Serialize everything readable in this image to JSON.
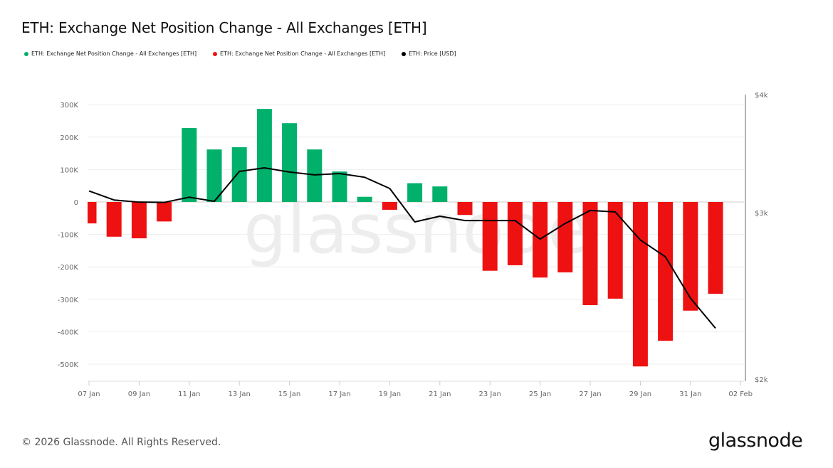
{
  "title": "ETH: Exchange Net Position Change - All Exchanges [ETH]",
  "legend": [
    {
      "label": "ETH: Exchange Net Position Change - All Exchanges [ETH]",
      "color": "#00b06b"
    },
    {
      "label": "ETH: Exchange Net Position Change - All Exchanges [ETH]",
      "color": "#ee1111"
    },
    {
      "label": "ETH: Price [USD]",
      "color": "#000000"
    }
  ],
  "footer": "© 2026 Glassnode. All Rights Reserved.",
  "logo": "glassnode",
  "watermark": "glassnode",
  "chart_data": {
    "type": "bar",
    "title": "ETH: Exchange Net Position Change - All Exchanges [ETH]",
    "categories": [
      "07 Jan",
      "08 Jan",
      "09 Jan",
      "10 Jan",
      "11 Jan",
      "12 Jan",
      "13 Jan",
      "14 Jan",
      "15 Jan",
      "16 Jan",
      "17 Jan",
      "18 Jan",
      "19 Jan",
      "20 Jan",
      "21 Jan",
      "22 Jan",
      "23 Jan",
      "24 Jan",
      "25 Jan",
      "26 Jan",
      "27 Jan",
      "28 Jan",
      "29 Jan",
      "30 Jan",
      "31 Jan",
      "01 Feb"
    ],
    "x_tick_labels": [
      "07 Jan",
      "09 Jan",
      "11 Jan",
      "13 Jan",
      "15 Jan",
      "17 Jan",
      "19 Jan",
      "21 Jan",
      "23 Jan",
      "25 Jan",
      "27 Jan",
      "29 Jan",
      "31 Jan",
      "02 Feb"
    ],
    "series": [
      {
        "name": "ETH: Exchange Net Position Change - All Exchanges [ETH]",
        "type": "bar",
        "axis": "left",
        "values": [
          -66000,
          -107000,
          -112000,
          -60000,
          228000,
          162000,
          169000,
          287000,
          243000,
          162000,
          94000,
          16000,
          -24000,
          58000,
          48000,
          -40000,
          -212000,
          -195000,
          -233000,
          -217000,
          -318000,
          -298000,
          -507000,
          -428000,
          -335000,
          -283000
        ],
        "positive_color": "#00b06b",
        "negative_color": "#ee1111"
      },
      {
        "name": "ETH: Price [USD]",
        "type": "line",
        "axis": "right",
        "color": "#000000",
        "values": [
          3163,
          3094,
          3078,
          3076,
          3115,
          3084,
          3317,
          3346,
          3312,
          3289,
          3300,
          3270,
          3182,
          2933,
          2974,
          2943,
          2943,
          2943,
          2813,
          2922,
          3016,
          3005,
          2807,
          2694,
          2436,
          2264
        ]
      }
    ],
    "y_left": {
      "ticks": [
        300000,
        200000,
        100000,
        0,
        -100000,
        -200000,
        -300000,
        -400000,
        -500000
      ],
      "tick_labels": [
        "300K",
        "200K",
        "100K",
        "0",
        "-100K",
        "-200K",
        "-300K",
        "-400K",
        "-500K"
      ],
      "range": [
        -550000,
        330000
      ]
    },
    "y_right": {
      "scale": "log",
      "ticks": [
        4000,
        3000,
        2000
      ],
      "tick_labels": [
        "$4k",
        "$3k",
        "$2k"
      ],
      "range": [
        2000,
        4000
      ]
    },
    "grid": true,
    "legend_position": "top-left"
  }
}
